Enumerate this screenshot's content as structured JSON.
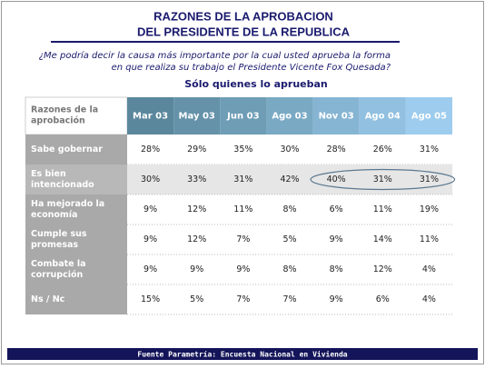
{
  "header": {
    "title": [
      "RAZONES DE LA APROBACION",
      "DEL PRESIDENTE DE LA REPUBLICA"
    ],
    "question": [
      "¿Me podría decir la causa más importante por la cual usted aprueba la forma",
      "en que realiza su trabajo el Presidente Vicente Fox Quesada?"
    ],
    "subtitle": "Sólo quienes lo aprueban"
  },
  "table": {
    "corner": [
      "Razones de la",
      "aprobación"
    ],
    "columns": [
      "Mar 03",
      "May 03",
      "Jun 03",
      "Ago 03",
      "Nov 03",
      "Ago 04",
      "Ago 05"
    ],
    "rows": [
      {
        "label": [
          "Sabe gobernar"
        ],
        "values": [
          "28%",
          "29%",
          "35%",
          "30%",
          "28%",
          "26%",
          "31%"
        ]
      },
      {
        "label": [
          "Es bien",
          "intencionado"
        ],
        "values": [
          "30%",
          "33%",
          "31%",
          "42%",
          "40%",
          "31%",
          "31%"
        ]
      },
      {
        "label": [
          "Ha mejorado la",
          "economía"
        ],
        "values": [
          "9%",
          "12%",
          "11%",
          "8%",
          "6%",
          "11%",
          "19%"
        ]
      },
      {
        "label": [
          "Cumple sus",
          "promesas"
        ],
        "values": [
          "9%",
          "12%",
          "7%",
          "5%",
          "9%",
          "14%",
          "11%"
        ]
      },
      {
        "label": [
          "Combate la",
          "corrupción"
        ],
        "values": [
          "9%",
          "9%",
          "9%",
          "8%",
          "8%",
          "12%",
          "4%"
        ]
      },
      {
        "label": [
          "Ns / Nc"
        ],
        "values": [
          "15%",
          "5%",
          "7%",
          "7%",
          "9%",
          "6%",
          "4%"
        ]
      }
    ]
  },
  "footer": "Fuente Parametría: Encuesta Nacional en Vivienda"
}
